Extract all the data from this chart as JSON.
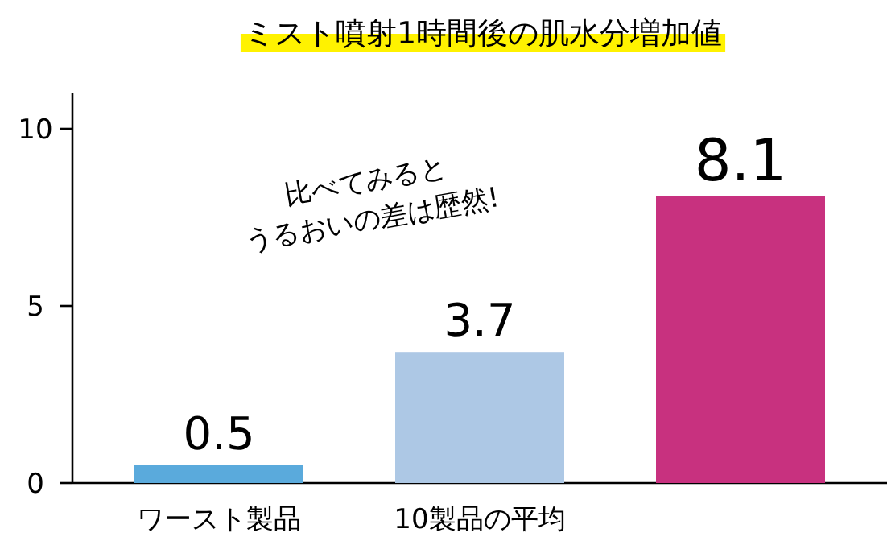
{
  "chart_data": {
    "type": "bar",
    "title": "ミスト噴射1時間後の肌水分増加値",
    "categories": [
      "ワースト製品",
      "10製品の平均",
      null
    ],
    "values": [
      0.5,
      3.7,
      8.1
    ],
    "colors": [
      "#5aaadc",
      "#adc8e5",
      "#c8317f"
    ],
    "ylim": [
      0,
      11
    ],
    "yticks": [
      0,
      5,
      10
    ],
    "data_labels": true,
    "grid": false,
    "annotations": [
      "比べてみると\nうるおいの差は歴然!"
    ]
  }
}
